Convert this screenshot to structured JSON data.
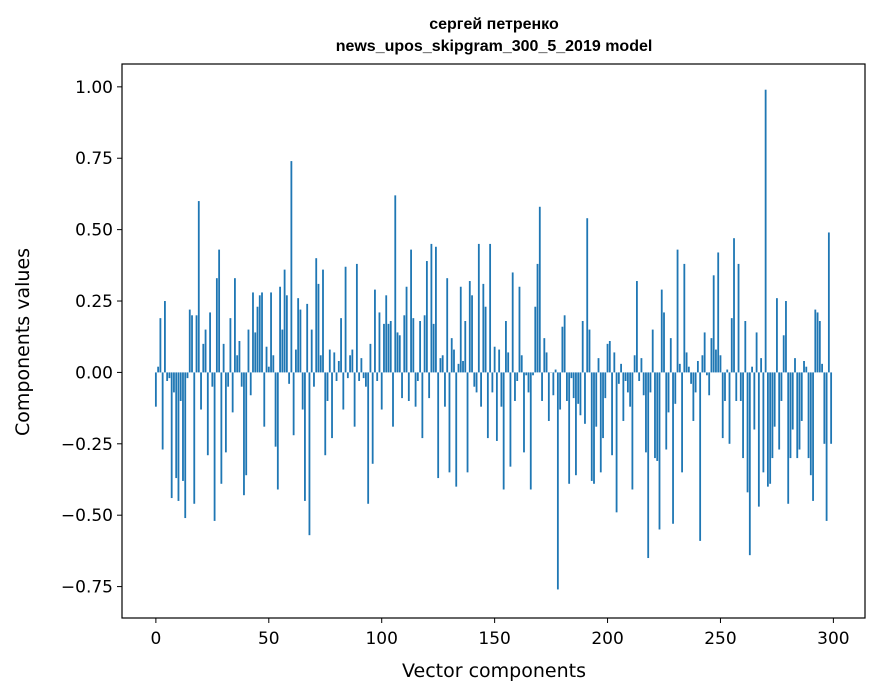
{
  "chart_data": {
    "type": "bar",
    "title": "сергей петренко",
    "subtitle": "news_upos_skipgram_300_5_2019 model",
    "xlabel": "Vector components",
    "ylabel": "Components values",
    "xlim": [
      -15,
      314
    ],
    "ylim": [
      -0.86,
      1.08
    ],
    "xticks": [
      0,
      50,
      100,
      150,
      200,
      250,
      300
    ],
    "xtick_labels": [
      "0",
      "50",
      "100",
      "150",
      "200",
      "250",
      "300"
    ],
    "yticks": [
      -0.75,
      -0.5,
      -0.25,
      0.0,
      0.25,
      0.5,
      0.75,
      1.0
    ],
    "ytick_labels": [
      "−0.75",
      "−0.50",
      "−0.25",
      "0.00",
      "0.25",
      "0.50",
      "0.75",
      "1.00"
    ],
    "bar_color": "#1f77b4",
    "values": [
      -0.12,
      0.02,
      0.19,
      -0.27,
      0.25,
      -0.03,
      -0.02,
      -0.44,
      -0.07,
      -0.37,
      -0.45,
      -0.1,
      -0.38,
      -0.51,
      -0.02,
      0.22,
      0.2,
      -0.46,
      0.2,
      0.6,
      -0.13,
      0.1,
      0.15,
      -0.29,
      0.21,
      -0.05,
      -0.52,
      0.33,
      0.43,
      -0.39,
      0.1,
      -0.28,
      -0.05,
      0.19,
      -0.14,
      0.33,
      0.06,
      0.11,
      -0.05,
      -0.43,
      -0.36,
      0.15,
      -0.08,
      0.28,
      0.14,
      0.23,
      0.27,
      0.28,
      -0.19,
      0.09,
      0.02,
      0.28,
      0.06,
      -0.26,
      -0.41,
      0.3,
      0.15,
      0.36,
      0.27,
      -0.04,
      0.74,
      -0.22,
      0.08,
      0.26,
      0.22,
      -0.13,
      -0.45,
      0.24,
      -0.57,
      0.15,
      -0.05,
      0.4,
      0.31,
      0.06,
      0.36,
      -0.29,
      -0.1,
      0.08,
      -0.23,
      0.07,
      -0.03,
      0.04,
      0.19,
      -0.13,
      0.37,
      -0.02,
      0.06,
      0.08,
      -0.19,
      0.38,
      -0.03,
      0.05,
      -0.02,
      -0.05,
      -0.46,
      0.1,
      -0.32,
      0.29,
      -0.03,
      0.21,
      -0.13,
      0.17,
      0.27,
      0.17,
      0.18,
      -0.19,
      0.62,
      0.14,
      0.13,
      -0.09,
      0.2,
      0.3,
      -0.1,
      0.43,
      0.19,
      -0.12,
      -0.03,
      0.18,
      -0.23,
      0.2,
      0.39,
      -0.09,
      0.45,
      0.17,
      0.44,
      -0.37,
      0.05,
      0.06,
      -0.12,
      0.33,
      -0.35,
      0.12,
      0.08,
      -0.4,
      0.03,
      0.3,
      0.04,
      0.18,
      -0.35,
      0.32,
      0.27,
      -0.05,
      -0.07,
      0.45,
      -0.12,
      0.31,
      0.23,
      -0.23,
      0.45,
      -0.07,
      0.09,
      -0.24,
      0.08,
      -0.12,
      -0.41,
      0.18,
      0.07,
      -0.33,
      0.35,
      -0.1,
      -0.03,
      0.3,
      0.06,
      -0.28,
      -0.01,
      -0.07,
      -0.41,
      -0.01,
      0.23,
      0.38,
      0.58,
      -0.1,
      0.12,
      0.07,
      -0.17,
      0.0,
      -0.08,
      0.01,
      -0.76,
      -0.13,
      0.16,
      0.2,
      -0.1,
      -0.39,
      -0.02,
      -0.09,
      -0.36,
      -0.11,
      -0.15,
      0.18,
      -0.18,
      0.54,
      0.15,
      -0.38,
      -0.39,
      -0.19,
      0.05,
      -0.35,
      -0.23,
      -0.09,
      0.1,
      0.11,
      -0.29,
      0.07,
      -0.49,
      -0.04,
      0.03,
      -0.17,
      -0.03,
      -0.07,
      -0.12,
      -0.41,
      0.06,
      0.32,
      -0.03,
      0.05,
      -0.08,
      -0.28,
      -0.65,
      -0.07,
      0.15,
      -0.3,
      -0.31,
      -0.55,
      0.29,
      0.21,
      -0.27,
      -0.14,
      0.12,
      -0.53,
      -0.11,
      0.43,
      0.03,
      -0.35,
      0.38,
      0.07,
      0.02,
      -0.04,
      -0.17,
      -0.07,
      0.04,
      -0.59,
      0.06,
      0.14,
      -0.01,
      -0.08,
      0.12,
      0.34,
      0.08,
      0.42,
      0.06,
      -0.23,
      -0.1,
      0.01,
      -0.25,
      0.19,
      0.47,
      -0.1,
      0.38,
      -0.1,
      -0.3,
      0.18,
      -0.42,
      -0.64,
      0.02,
      -0.2,
      0.14,
      -0.47,
      0.05,
      -0.35,
      0.99,
      -0.4,
      -0.39,
      -0.3,
      -0.19,
      0.26,
      -0.27,
      -0.1,
      0.13,
      0.25,
      -0.46,
      -0.3,
      -0.2,
      0.05,
      -0.3,
      -0.27,
      -0.17,
      0.04,
      0.02,
      -0.3,
      -0.36,
      -0.45,
      0.22,
      0.21,
      0.18,
      0.03,
      -0.25,
      -0.52,
      0.49,
      -0.25
    ]
  }
}
